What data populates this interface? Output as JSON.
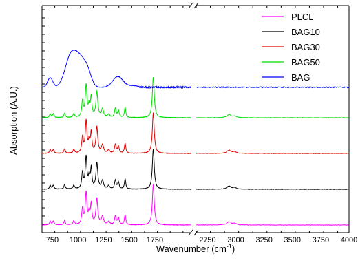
{
  "chart_data": {
    "type": "line",
    "xlabel": "Wavenumber (cm",
    "xlabel_sup": "-1",
    "xlabel_close": ")",
    "ylabel": "Absorption (A.U.)",
    "x_axis_break": true,
    "x_segments": [
      {
        "xlim": [
          650,
          2100
        ],
        "ticks": [
          750,
          1000,
          1250,
          1500,
          1750
        ]
      },
      {
        "xlim": [
          2650,
          4000
        ],
        "ticks": [
          2750,
          3000,
          3250,
          3500,
          3750,
          4000
        ]
      }
    ],
    "y_ticks_labels_shown": false,
    "grid": false,
    "legend_position": "top-right",
    "series": [
      {
        "name": "PLCL",
        "color": "#ff00ff",
        "offset": 0.0
      },
      {
        "name": "BAG10",
        "color": "#000000",
        "offset": 1.0
      },
      {
        "name": "BAG30",
        "color": "#e00000",
        "offset": 2.0
      },
      {
        "name": "BAG50",
        "color": "#00dd00",
        "offset": 3.0
      },
      {
        "name": "BAG",
        "color": "#0000ff",
        "offset": 3.85
      }
    ],
    "peaks": [
      {
        "x": 730,
        "h": 0.12,
        "w": 8
      },
      {
        "x": 760,
        "h": 0.12,
        "w": 9
      },
      {
        "x": 870,
        "h": 0.14,
        "w": 8
      },
      {
        "x": 960,
        "h": 0.12,
        "w": 9
      },
      {
        "x": 1045,
        "h": 0.5,
        "w": 9
      },
      {
        "x": 1080,
        "h": 1.0,
        "w": 10
      },
      {
        "x": 1110,
        "h": 0.35,
        "w": 9
      },
      {
        "x": 1130,
        "h": 0.62,
        "w": 8
      },
      {
        "x": 1185,
        "h": 0.82,
        "w": 11
      },
      {
        "x": 1240,
        "h": 0.26,
        "w": 12
      },
      {
        "x": 1300,
        "h": 0.1,
        "w": 12
      },
      {
        "x": 1365,
        "h": 0.28,
        "w": 9
      },
      {
        "x": 1395,
        "h": 0.22,
        "w": 9
      },
      {
        "x": 1460,
        "h": 0.32,
        "w": 8
      },
      {
        "x": 1735,
        "h": 1.28,
        "w": 11
      },
      {
        "x": 2940,
        "h": 0.1,
        "w": 22
      },
      {
        "x": 2990,
        "h": 0.05,
        "w": 16
      }
    ],
    "bag_bands": [
      {
        "x": 730,
        "h": 0.3,
        "w": 25
      },
      {
        "x": 930,
        "h": 0.95,
        "w": 55
      },
      {
        "x": 1030,
        "h": 0.8,
        "w": 55
      },
      {
        "x": 1100,
        "h": 0.28,
        "w": 35
      },
      {
        "x": 1390,
        "h": 0.34,
        "w": 50
      },
      {
        "x": 1540,
        "h": 0.05,
        "w": 50
      }
    ]
  }
}
